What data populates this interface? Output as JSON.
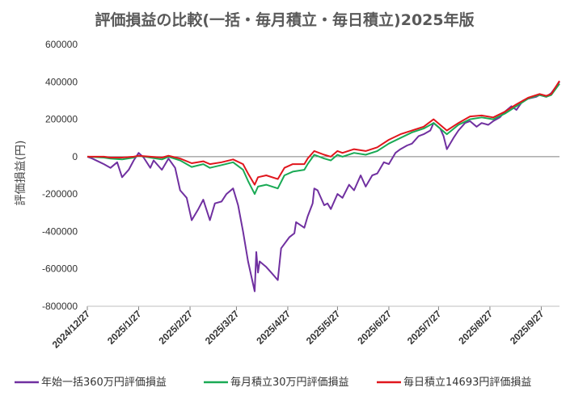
{
  "chart_data": {
    "type": "line",
    "title": "評価損益の比較(一括・毎月積立・毎日積立)2025年版",
    "xlabel": "",
    "ylabel": "評価損益(円)",
    "ylim": [
      -800000,
      600000
    ],
    "yticks": [
      600000,
      400000,
      200000,
      0,
      -200000,
      -400000,
      -600000,
      -800000
    ],
    "ytick_labels": [
      "600000",
      "400000",
      "200000",
      "0",
      "-200000",
      "-400000",
      "-600000",
      "-800000"
    ],
    "xlim": [
      "2024/12/27",
      "2025/10/8"
    ],
    "xticks": [
      "2024/12/27",
      "2025/1/27",
      "2025/2/27",
      "2025/3/27",
      "2025/4/27",
      "2025/5/27",
      "2025/6/27",
      "2025/7/27",
      "2025/8/27",
      "2025/9/27"
    ],
    "grid": false,
    "legend_position": "bottom",
    "series": [
      {
        "name": "年始一括360万円評価損益",
        "color": "#7030a0",
        "points": [
          [
            "2024/12/27",
            0
          ],
          [
            "2024/12/30",
            -10000
          ],
          [
            "2025/1/6",
            -40000
          ],
          [
            "2025/1/10",
            -60000
          ],
          [
            "2025/1/14",
            -30000
          ],
          [
            "2025/1/17",
            -110000
          ],
          [
            "2025/1/21",
            -70000
          ],
          [
            "2025/1/24",
            -20000
          ],
          [
            "2025/1/27",
            20000
          ],
          [
            "2025/1/30",
            -5000
          ],
          [
            "2025/2/3",
            -60000
          ],
          [
            "2025/2/5",
            -20000
          ],
          [
            "2025/2/10",
            -70000
          ],
          [
            "2025/2/14",
            -10000
          ],
          [
            "2025/2/18",
            -60000
          ],
          [
            "2025/2/21",
            -180000
          ],
          [
            "2025/2/25",
            -220000
          ],
          [
            "2025/2/28",
            -340000
          ],
          [
            "2025/3/4",
            -280000
          ],
          [
            "2025/3/7",
            -230000
          ],
          [
            "2025/3/11",
            -340000
          ],
          [
            "2025/3/14",
            -250000
          ],
          [
            "2025/3/18",
            -240000
          ],
          [
            "2025/3/21",
            -200000
          ],
          [
            "2025/3/25",
            -170000
          ],
          [
            "2025/3/28",
            -260000
          ],
          [
            "2025/3/31",
            -400000
          ],
          [
            "2025/4/3",
            -560000
          ],
          [
            "2025/4/7",
            -720000
          ],
          [
            "2025/4/8",
            -510000
          ],
          [
            "2025/4/9",
            -620000
          ],
          [
            "2025/4/10",
            -560000
          ],
          [
            "2025/4/14",
            -590000
          ],
          [
            "2025/4/17",
            -620000
          ],
          [
            "2025/4/21",
            -660000
          ],
          [
            "2025/4/23",
            -490000
          ],
          [
            "2025/4/28",
            -430000
          ],
          [
            "2025/5/1",
            -410000
          ],
          [
            "2025/5/2",
            -350000
          ],
          [
            "2025/5/7",
            -380000
          ],
          [
            "2025/5/9",
            -320000
          ],
          [
            "2025/5/12",
            -250000
          ],
          [
            "2025/5/13",
            -170000
          ],
          [
            "2025/5/15",
            -180000
          ],
          [
            "2025/5/19",
            -260000
          ],
          [
            "2025/5/21",
            -250000
          ],
          [
            "2025/5/23",
            -280000
          ],
          [
            "2025/5/27",
            -200000
          ],
          [
            "2025/5/30",
            -220000
          ],
          [
            "2025/6/3",
            -150000
          ],
          [
            "2025/6/6",
            -180000
          ],
          [
            "2025/6/10",
            -100000
          ],
          [
            "2025/6/13",
            -160000
          ],
          [
            "2025/6/17",
            -100000
          ],
          [
            "2025/6/20",
            -90000
          ],
          [
            "2025/6/24",
            -30000
          ],
          [
            "2025/6/27",
            -40000
          ],
          [
            "2025/7/1",
            20000
          ],
          [
            "2025/7/4",
            40000
          ],
          [
            "2025/7/8",
            60000
          ],
          [
            "2025/7/11",
            70000
          ],
          [
            "2025/7/15",
            110000
          ],
          [
            "2025/7/18",
            120000
          ],
          [
            "2025/7/22",
            140000
          ],
          [
            "2025/7/24",
            180000
          ],
          [
            "2025/7/28",
            150000
          ],
          [
            "2025/7/30",
            110000
          ],
          [
            "2025/8/1",
            40000
          ],
          [
            "2025/8/5",
            100000
          ],
          [
            "2025/8/8",
            140000
          ],
          [
            "2025/8/12",
            180000
          ],
          [
            "2025/8/15",
            190000
          ],
          [
            "2025/8/19",
            160000
          ],
          [
            "2025/8/22",
            180000
          ],
          [
            "2025/8/26",
            170000
          ],
          [
            "2025/8/29",
            190000
          ],
          [
            "2025/9/2",
            210000
          ],
          [
            "2025/9/5",
            240000
          ],
          [
            "2025/9/9",
            270000
          ],
          [
            "2025/9/12",
            250000
          ],
          [
            "2025/9/16",
            300000
          ],
          [
            "2025/9/19",
            310000
          ],
          [
            "2025/9/24",
            320000
          ],
          [
            "2025/9/26",
            330000
          ],
          [
            "2025/9/30",
            320000
          ],
          [
            "2025/10/3",
            340000
          ],
          [
            "2025/10/8",
            400000
          ]
        ]
      },
      {
        "name": "毎月積立30万円評価損益",
        "color": "#1aaa55",
        "points": [
          [
            "2024/12/27",
            0
          ],
          [
            "2025/1/6",
            -5000
          ],
          [
            "2025/1/10",
            -10000
          ],
          [
            "2025/1/17",
            -15000
          ],
          [
            "2025/1/24",
            -5000
          ],
          [
            "2025/1/27",
            5000
          ],
          [
            "2025/2/3",
            -5000
          ],
          [
            "2025/2/10",
            -15000
          ],
          [
            "2025/2/14",
            0
          ],
          [
            "2025/2/21",
            -20000
          ],
          [
            "2025/2/28",
            -55000
          ],
          [
            "2025/3/7",
            -40000
          ],
          [
            "2025/3/11",
            -60000
          ],
          [
            "2025/3/18",
            -45000
          ],
          [
            "2025/3/25",
            -30000
          ],
          [
            "2025/3/31",
            -70000
          ],
          [
            "2025/4/3",
            -130000
          ],
          [
            "2025/4/7",
            -200000
          ],
          [
            "2025/4/9",
            -160000
          ],
          [
            "2025/4/14",
            -150000
          ],
          [
            "2025/4/21",
            -170000
          ],
          [
            "2025/4/25",
            -100000
          ],
          [
            "2025/4/30",
            -80000
          ],
          [
            "2025/5/7",
            -70000
          ],
          [
            "2025/5/9",
            -40000
          ],
          [
            "2025/5/13",
            10000
          ],
          [
            "2025/5/19",
            -10000
          ],
          [
            "2025/5/23",
            -20000
          ],
          [
            "2025/5/27",
            10000
          ],
          [
            "2025/5/30",
            0
          ],
          [
            "2025/6/6",
            20000
          ],
          [
            "2025/6/13",
            10000
          ],
          [
            "2025/6/20",
            30000
          ],
          [
            "2025/6/27",
            70000
          ],
          [
            "2025/7/4",
            100000
          ],
          [
            "2025/7/11",
            130000
          ],
          [
            "2025/7/18",
            150000
          ],
          [
            "2025/7/24",
            180000
          ],
          [
            "2025/8/1",
            120000
          ],
          [
            "2025/8/8",
            170000
          ],
          [
            "2025/8/15",
            200000
          ],
          [
            "2025/8/22",
            210000
          ],
          [
            "2025/8/29",
            200000
          ],
          [
            "2025/9/5",
            230000
          ],
          [
            "2025/9/12",
            270000
          ],
          [
            "2025/9/19",
            310000
          ],
          [
            "2025/9/26",
            330000
          ],
          [
            "2025/9/30",
            320000
          ],
          [
            "2025/10/3",
            330000
          ],
          [
            "2025/10/8",
            390000
          ]
        ]
      },
      {
        "name": "毎日積立14693円評価損益",
        "color": "#e0161d",
        "points": [
          [
            "2024/12/27",
            0
          ],
          [
            "2025/1/6",
            0
          ],
          [
            "2025/1/10",
            -5000
          ],
          [
            "2025/1/17",
            -5000
          ],
          [
            "2025/1/24",
            0
          ],
          [
            "2025/1/27",
            5000
          ],
          [
            "2025/2/3",
            0
          ],
          [
            "2025/2/10",
            -5000
          ],
          [
            "2025/2/14",
            5000
          ],
          [
            "2025/2/21",
            -10000
          ],
          [
            "2025/2/28",
            -35000
          ],
          [
            "2025/3/7",
            -25000
          ],
          [
            "2025/3/11",
            -40000
          ],
          [
            "2025/3/18",
            -30000
          ],
          [
            "2025/3/25",
            -15000
          ],
          [
            "2025/3/31",
            -40000
          ],
          [
            "2025/4/3",
            -90000
          ],
          [
            "2025/4/7",
            -150000
          ],
          [
            "2025/4/9",
            -110000
          ],
          [
            "2025/4/14",
            -100000
          ],
          [
            "2025/4/21",
            -120000
          ],
          [
            "2025/4/25",
            -60000
          ],
          [
            "2025/4/30",
            -40000
          ],
          [
            "2025/5/7",
            -40000
          ],
          [
            "2025/5/9",
            -10000
          ],
          [
            "2025/5/13",
            30000
          ],
          [
            "2025/5/19",
            10000
          ],
          [
            "2025/5/23",
            0
          ],
          [
            "2025/5/27",
            30000
          ],
          [
            "2025/5/30",
            20000
          ],
          [
            "2025/6/6",
            40000
          ],
          [
            "2025/6/13",
            30000
          ],
          [
            "2025/6/20",
            50000
          ],
          [
            "2025/6/27",
            90000
          ],
          [
            "2025/7/4",
            120000
          ],
          [
            "2025/7/11",
            140000
          ],
          [
            "2025/7/18",
            160000
          ],
          [
            "2025/7/24",
            200000
          ],
          [
            "2025/8/1",
            140000
          ],
          [
            "2025/8/8",
            180000
          ],
          [
            "2025/8/15",
            215000
          ],
          [
            "2025/8/22",
            220000
          ],
          [
            "2025/8/29",
            210000
          ],
          [
            "2025/9/5",
            240000
          ],
          [
            "2025/9/12",
            280000
          ],
          [
            "2025/9/19",
            315000
          ],
          [
            "2025/9/26",
            335000
          ],
          [
            "2025/9/30",
            325000
          ],
          [
            "2025/10/3",
            335000
          ],
          [
            "2025/10/8",
            405000
          ]
        ]
      }
    ]
  }
}
